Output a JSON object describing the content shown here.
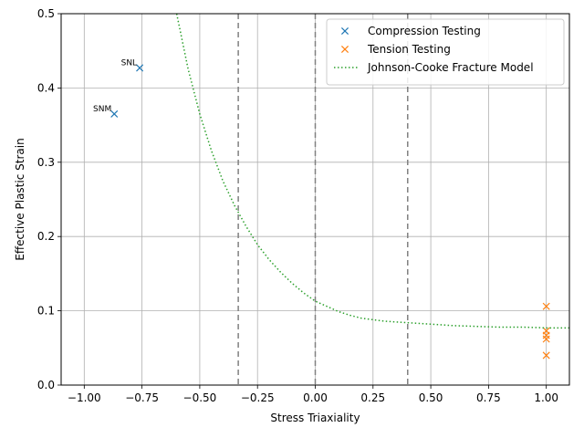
{
  "chart_data": {
    "type": "scatter",
    "title": "",
    "xlabel": "Stress Triaxiality",
    "ylabel": "Effective Plastic Strain",
    "xlim": [
      -1.1,
      1.1
    ],
    "ylim": [
      0,
      0.5
    ],
    "xticks": [
      -1.0,
      -0.75,
      -0.5,
      -0.25,
      0.0,
      0.25,
      0.5,
      0.75,
      1.0
    ],
    "xtick_labels": [
      "−1.00",
      "−0.75",
      "−0.50",
      "−0.25",
      "0.00",
      "0.25",
      "0.50",
      "0.75",
      "1.00"
    ],
    "yticks": [
      0.0,
      0.1,
      0.2,
      0.3,
      0.4,
      0.5
    ],
    "ytick_labels": [
      "0.0",
      "0.1",
      "0.2",
      "0.3",
      "0.4",
      "0.5"
    ],
    "grid": true,
    "legend_position": "top-right",
    "series": [
      {
        "name": "Compression Testing",
        "marker": "x",
        "color": "#1f77b4",
        "points": [
          {
            "x": -0.76,
            "y": 0.427
          },
          {
            "x": -0.87,
            "y": 0.365
          }
        ]
      },
      {
        "name": "Tension Testing",
        "marker": "x",
        "color": "#ff7f0e",
        "points": [
          {
            "x": 1.0,
            "y": 0.106
          },
          {
            "x": 1.0,
            "y": 0.073
          },
          {
            "x": 1.0,
            "y": 0.067
          },
          {
            "x": 1.0,
            "y": 0.062
          },
          {
            "x": 1.0,
            "y": 0.04
          }
        ]
      },
      {
        "name": "Johnson-Cooke Fracture Model",
        "style": "dotted",
        "color": "#2ca02c",
        "x": [
          -0.6,
          -0.55,
          -0.5,
          -0.45,
          -0.4,
          -0.35,
          -0.3,
          -0.25,
          -0.2,
          -0.15,
          -0.1,
          -0.05,
          0.0,
          0.05,
          0.1,
          0.15,
          0.2,
          0.25,
          0.3,
          0.35,
          0.4,
          0.5,
          0.6,
          0.7,
          0.8,
          0.9,
          1.0,
          1.1
        ],
        "y": [
          0.5,
          0.425,
          0.365,
          0.316,
          0.275,
          0.242,
          0.214,
          0.189,
          0.169,
          0.152,
          0.137,
          0.124,
          0.113,
          0.106,
          0.099,
          0.094,
          0.09,
          0.088,
          0.086,
          0.085,
          0.084,
          0.082,
          0.08,
          0.079,
          0.078,
          0.078,
          0.077,
          0.077
        ]
      }
    ],
    "vlines": [
      {
        "x": -0.3333,
        "style": "dashed",
        "color": "#808080"
      },
      {
        "x": 0.0,
        "style": "dashed",
        "color": "#808080"
      },
      {
        "x": 0.4,
        "style": "dashed",
        "color": "#808080"
      }
    ],
    "annotations": [
      {
        "text": "SNL",
        "x": -0.76,
        "y": 0.427
      },
      {
        "text": "SNM",
        "x": -0.87,
        "y": 0.365
      }
    ]
  }
}
